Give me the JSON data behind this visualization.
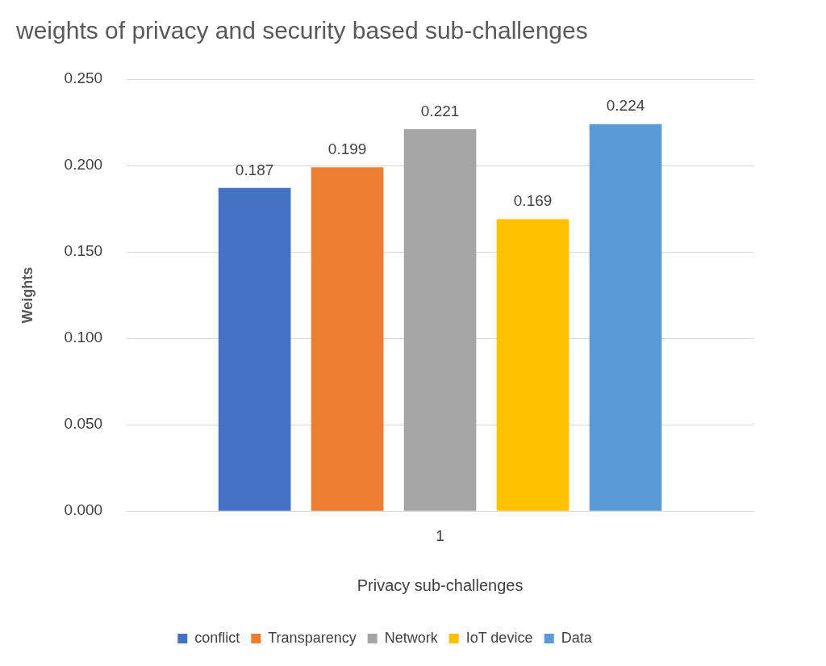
{
  "chart_data": {
    "type": "bar",
    "title": "weights of privacy and security based sub-challenges",
    "xlabel": "Privacy sub-challenges",
    "ylabel": "Weights",
    "categories": [
      "1"
    ],
    "series": [
      {
        "name": "conflict",
        "color": "#4472c4",
        "values": [
          0.187
        ]
      },
      {
        "name": "Transparency",
        "color": "#ed7d31",
        "values": [
          0.199
        ]
      },
      {
        "name": "Network",
        "color": "#a5a5a5",
        "values": [
          0.221
        ]
      },
      {
        "name": "IoT device",
        "color": "#ffc000",
        "values": [
          0.169
        ]
      },
      {
        "name": "Data",
        "color": "#5b9bd5",
        "values": [
          0.224
        ]
      }
    ],
    "ylim": [
      0,
      0.25
    ],
    "yticks": [
      {
        "value": 0,
        "label": "0.000"
      },
      {
        "value": 0.05,
        "label": "0.050"
      },
      {
        "value": 0.1,
        "label": "0.100"
      },
      {
        "value": 0.15,
        "label": "0.150"
      },
      {
        "value": 0.2,
        "label": "0.200"
      },
      {
        "value": 0.25,
        "label": "0.250"
      }
    ],
    "grid": "y",
    "legend": "bottom",
    "data_labels": true
  }
}
